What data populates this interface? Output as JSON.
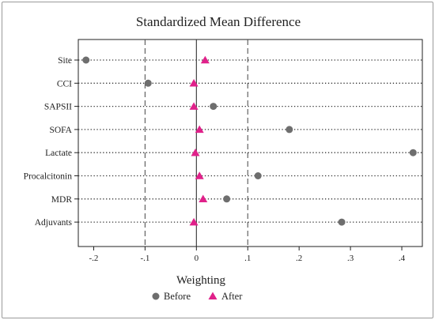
{
  "chart_data": {
    "type": "scatter",
    "title": "Standardized Mean Difference",
    "xlabel": "",
    "ylabel": "",
    "xlim": [
      -0.23,
      0.44
    ],
    "x_ticks": [
      -0.2,
      -0.1,
      0,
      0.1,
      0.2,
      0.3,
      0.4
    ],
    "x_tick_labels": [
      "-.2",
      "-.1",
      "0",
      ".1",
      ".2",
      ".3",
      ".4"
    ],
    "reference_lines": [
      -0.1,
      0,
      0.1
    ],
    "categories": [
      "Site",
      "CCI",
      "SAPSII",
      "SOFA",
      "Lactate",
      "Procalcitonin",
      "MDR",
      "Adjuvants"
    ],
    "series": [
      {
        "name": "Before",
        "marker": "circle",
        "color": "#6e6e6e",
        "values": [
          -0.215,
          -0.094,
          0.033,
          0.181,
          0.422,
          0.12,
          0.059,
          0.283
        ]
      },
      {
        "name": "After",
        "marker": "triangle",
        "color": "#e0218a",
        "values": [
          0.017,
          -0.005,
          -0.005,
          0.006,
          -0.002,
          0.006,
          0.013,
          -0.005
        ]
      }
    ],
    "legend": {
      "title": "Weighting",
      "position": "bottom-center"
    },
    "grid": "dotted horizontal lines at each category"
  }
}
